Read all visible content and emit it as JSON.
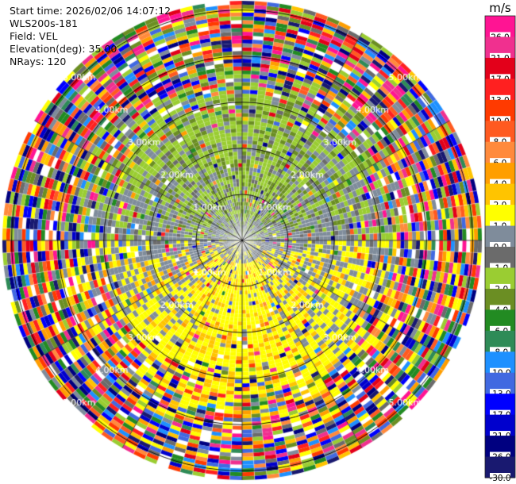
{
  "header": {
    "start_time": "Start time: 2026/02/06 14:07:12",
    "instrument": "WLS200s-181",
    "field": "Field: VEL",
    "elevation": "Elevation(deg): 35.00",
    "nrays": "NRays: 120"
  },
  "chart_data": {
    "type": "heatmap",
    "projection": "polar-ppi",
    "field": "VEL",
    "units": "m/s",
    "nrays": 120,
    "elevation_deg": 35.0,
    "range_rings_km": [
      1.0,
      2.0,
      3.0,
      4.0,
      5.0
    ],
    "ring_labels": [
      "1.00km",
      "2.00km",
      "3.00km",
      "4.00km",
      "5.00km"
    ],
    "max_range_km": 5.2,
    "radial_spokes_deg": [
      0,
      30,
      60,
      90,
      120,
      150,
      180,
      210,
      240,
      270,
      300,
      330
    ],
    "dominant_pattern": {
      "north_sector_near": "-1.0 to -2.0 m/s (approaching)",
      "south_sector_near": "1.0 to 4.0 m/s (receding)",
      "far_range": "noise, all values"
    },
    "colorbar": {
      "label": "m/s",
      "tick_labels": [
        "26.0",
        "21.0",
        "17.0",
        "13.0",
        "10.0",
        "8.0",
        "6.0",
        "4.0",
        "2.0",
        "1.0",
        "0.0",
        "-1.0",
        "-2.0",
        "-4.0",
        "-6.0",
        "-8.0",
        "-10.0",
        "-13.0",
        "-17.0",
        "-21.0",
        "-26.0",
        "-30.0"
      ],
      "colors": [
        "#ff1493",
        "#f0308f",
        "#e3001a",
        "#ff2020",
        "#ff3a00",
        "#ff5a20",
        "#ff8a3c",
        "#ff9e00",
        "#ffc400",
        "#ffff00",
        "#7f8c9b",
        "#6b6b6b",
        "#9acd32",
        "#6b8e23",
        "#228b22",
        "#2e8b57",
        "#1e90ff",
        "#4169e1",
        "#0000ff",
        "#0000cd",
        "#000080",
        "#191970"
      ]
    }
  }
}
